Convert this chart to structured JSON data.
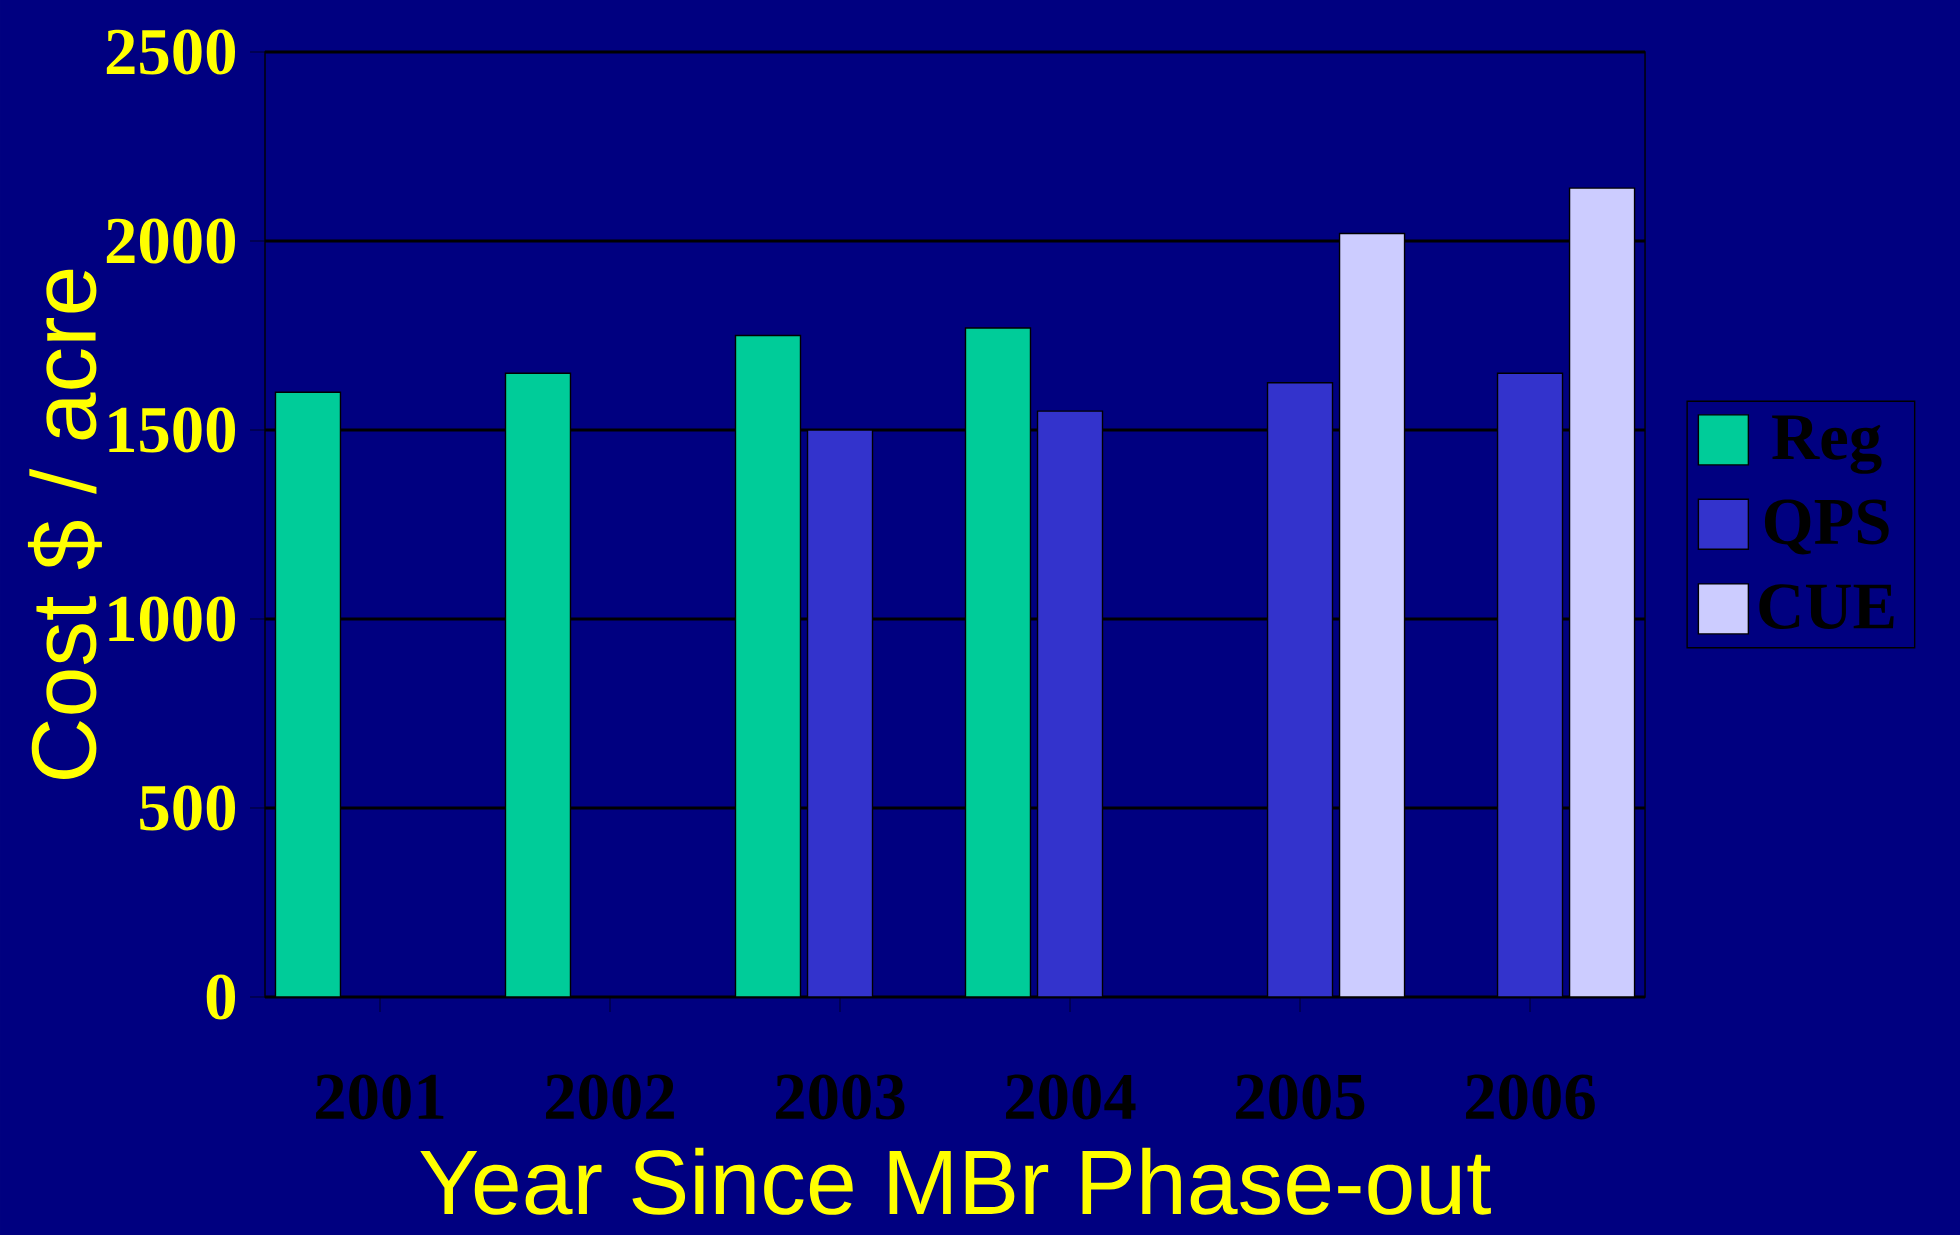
{
  "chart_data": {
    "type": "bar",
    "xlabel": "Year Since MBr Phase-out",
    "ylabel": "Cost  $ / acre",
    "categories": [
      "2001",
      "2002",
      "2003",
      "2004",
      "2005",
      "2006"
    ],
    "series": [
      {
        "name": "Reg",
        "color": "#00cc99",
        "values": [
          1600,
          1650,
          1750,
          1770,
          null,
          null
        ]
      },
      {
        "name": "QPS",
        "color": "#3333cc",
        "values": [
          null,
          null,
          1500,
          1550,
          1625,
          1650
        ]
      },
      {
        "name": "CUE",
        "color": "#ccccff",
        "values": [
          null,
          null,
          null,
          null,
          2020,
          2140
        ]
      }
    ],
    "ylim": [
      0,
      2500
    ],
    "yticks": [
      0,
      500,
      1000,
      1500,
      2000,
      2500
    ],
    "grid": "y",
    "legend": "right"
  }
}
